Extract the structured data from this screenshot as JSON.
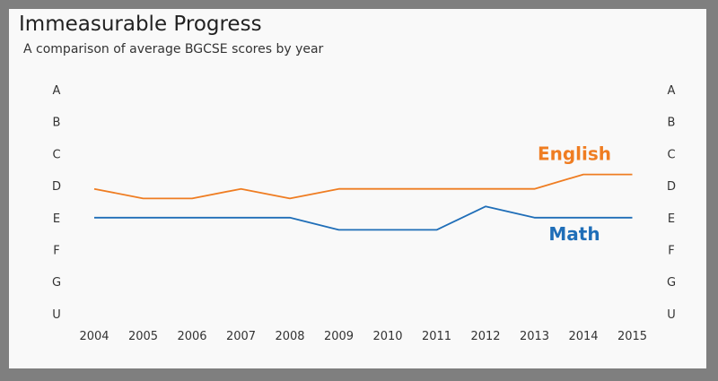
{
  "chart_data": {
    "type": "line",
    "title": "Immeasurable Progress",
    "subtitle": "A comparison of average BGCSE scores by year",
    "x": [
      "2004",
      "2005",
      "2006",
      "2007",
      "2008",
      "2009",
      "2010",
      "2011",
      "2012",
      "2013",
      "2014",
      "2015"
    ],
    "y_categories": [
      "A",
      "B",
      "C",
      "D",
      "E",
      "F",
      "G",
      "U"
    ],
    "series": [
      {
        "name": "English",
        "color": "#ef7d22",
        "values": [
          3.9,
          3.6,
          3.6,
          3.9,
          3.6,
          3.9,
          3.9,
          3.9,
          3.9,
          3.9,
          4.35,
          4.35
        ]
      },
      {
        "name": "Math",
        "color": "#1f6eb8",
        "values": [
          3.0,
          3.0,
          3.0,
          3.0,
          3.0,
          2.62,
          2.62,
          2.62,
          3.35,
          3.0,
          3.0,
          3.0
        ]
      }
    ],
    "grid": false,
    "legend": "inline-labels"
  }
}
